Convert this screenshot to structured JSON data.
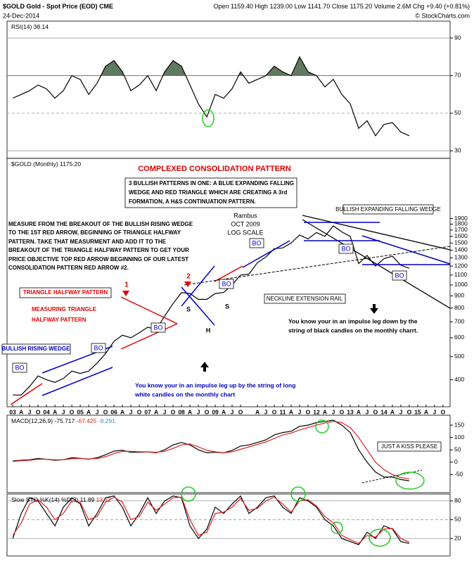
{
  "header": {
    "symbol": "$GOLD",
    "name": "Gold - Spot Price (EOD)",
    "exchange": "CME",
    "date": "24-Dec-2014",
    "open_label": "Open",
    "open": "1159.40",
    "high_label": "High",
    "high": "1239.00",
    "low_label": "Low",
    "low": "1141.70",
    "close_label": "Close",
    "close": "1175.20",
    "volume_label": "Volume",
    "volume": "2.6M",
    "chg_label": "Chg",
    "chg": "+9.40 (+0.81%)",
    "source": "© StockCharts.com"
  },
  "chart_data": [
    {
      "type": "line",
      "label": "RSI(14)",
      "last_values": [
        38.14
      ],
      "x": [
        2003,
        2003.25,
        2003.5,
        2003.75,
        2004,
        2004.25,
        2004.5,
        2004.75,
        2005,
        2005.25,
        2005.5,
        2005.75,
        2006,
        2006.25,
        2006.5,
        2006.75,
        2007,
        2007.25,
        2007.5,
        2007.75,
        2008,
        2008.25,
        2008.5,
        2008.75,
        2009,
        2009.25,
        2009.5,
        2009.75,
        2010,
        2010.25,
        2010.5,
        2010.75,
        2011,
        2011.25,
        2011.5,
        2011.75,
        2012,
        2012.25,
        2012.5,
        2012.75,
        2013,
        2013.25,
        2013.5,
        2013.75,
        2014,
        2014.25,
        2014.5,
        2014.75
      ],
      "series": [
        {
          "color": "#000000",
          "fill": "#5f7a5f",
          "values": [
            58,
            60,
            62,
            65,
            63,
            58,
            62,
            70,
            68,
            60,
            66,
            75,
            78,
            72,
            62,
            65,
            70,
            62,
            72,
            78,
            75,
            65,
            55,
            48,
            60,
            58,
            63,
            72,
            66,
            68,
            70,
            75,
            72,
            70,
            80,
            72,
            70,
            64,
            68,
            60,
            55,
            42,
            46,
            38,
            44,
            45,
            40,
            38
          ]
        }
      ],
      "xlim": [
        2002.83,
        2015.96
      ],
      "ylim": [
        26,
        99
      ],
      "yticks": [
        30,
        50,
        70,
        90
      ],
      "grid": true,
      "shade_above": 70
    },
    {
      "type": "line",
      "label": "$GOLD (Monthly)",
      "last_values": [
        "1175.20"
      ],
      "log": true,
      "x": [
        2003,
        2003.25,
        2003.5,
        2003.75,
        2004,
        2004.25,
        2004.5,
        2004.75,
        2005,
        2005.25,
        2005.5,
        2005.75,
        2006,
        2006.25,
        2006.5,
        2006.75,
        2007,
        2007.25,
        2007.5,
        2007.75,
        2008,
        2008.25,
        2008.5,
        2008.75,
        2009,
        2009.25,
        2009.5,
        2009.75,
        2010,
        2010.25,
        2010.5,
        2010.75,
        2011,
        2011.25,
        2011.5,
        2011.75,
        2012,
        2012.25,
        2012.5,
        2012.75,
        2013,
        2013.25,
        2013.5,
        2013.75,
        2014,
        2014.25,
        2014.5,
        2014.75
      ],
      "series": [
        {
          "color": "#000000",
          "values": [
            345,
            345,
            375,
            415,
            400,
            390,
            405,
            435,
            425,
            435,
            470,
            515,
            580,
            615,
            600,
            630,
            665,
            650,
            740,
            835,
            930,
            920,
            870,
            870,
            920,
            930,
            1000,
            1100,
            1110,
            1240,
            1310,
            1420,
            1430,
            1500,
            1620,
            1560,
            1660,
            1600,
            1770,
            1670,
            1600,
            1230,
            1330,
            1200,
            1290,
            1320,
            1210,
            1175
          ]
        }
      ],
      "xlim": [
        2002.83,
        2015.96
      ],
      "ylim": [
        308,
        3400
      ],
      "yticks": [
        400,
        500,
        600,
        700,
        800,
        900,
        1000,
        1100,
        1200,
        1300,
        1400,
        1500,
        1600,
        1700,
        1800,
        1900
      ],
      "grid": false,
      "xticks": [
        {
          "value": 2003,
          "label": "03"
        },
        {
          "value": 2003.25,
          "label": "A"
        },
        {
          "value": 2003.5,
          "label": "J"
        },
        {
          "value": 2003.75,
          "label": "O"
        },
        {
          "value": 2004,
          "label": "04"
        },
        {
          "value": 2004.25,
          "label": "A"
        },
        {
          "value": 2004.5,
          "label": "J"
        },
        {
          "value": 2004.75,
          "label": "O"
        },
        {
          "value": 2005,
          "label": "05"
        },
        {
          "value": 2005.25,
          "label": "A"
        },
        {
          "value": 2005.5,
          "label": "J"
        },
        {
          "value": 2005.75,
          "label": "O"
        },
        {
          "value": 2006,
          "label": "06"
        },
        {
          "value": 2006.25,
          "label": "A"
        },
        {
          "value": 2006.5,
          "label": "J"
        },
        {
          "value": 2006.75,
          "label": "O"
        },
        {
          "value": 2007,
          "label": "07"
        },
        {
          "value": 2007.25,
          "label": "A"
        },
        {
          "value": 2007.5,
          "label": "J"
        },
        {
          "value": 2007.75,
          "label": "O"
        },
        {
          "value": 2008,
          "label": "08"
        },
        {
          "value": 2008.25,
          "label": "A"
        },
        {
          "value": 2008.5,
          "label": "J"
        },
        {
          "value": 2008.75,
          "label": "O"
        },
        {
          "value": 2009,
          "label": "09"
        },
        {
          "value": 2009.25,
          "label": "A"
        },
        {
          "value": 2009.5,
          "label": "J"
        },
        {
          "value": 2009.75,
          "label": "O"
        },
        {
          "value": 2010.25,
          "label": "A"
        },
        {
          "value": 2010.5,
          "label": "J"
        },
        {
          "value": 2010.75,
          "label": "O"
        },
        {
          "value": 2011,
          "label": "11"
        },
        {
          "value": 2011.25,
          "label": "A"
        },
        {
          "value": 2011.5,
          "label": "J"
        },
        {
          "value": 2011.75,
          "label": "O"
        },
        {
          "value": 2012,
          "label": "12"
        },
        {
          "value": 2012.25,
          "label": "A"
        },
        {
          "value": 2012.5,
          "label": "J"
        },
        {
          "value": 2012.75,
          "label": "O"
        },
        {
          "value": 2013,
          "label": "13"
        },
        {
          "value": 2013.25,
          "label": "A"
        },
        {
          "value": 2013.5,
          "label": "J"
        },
        {
          "value": 2013.75,
          "label": "O"
        },
        {
          "value": 2014,
          "label": "14"
        },
        {
          "value": 2014.25,
          "label": "A"
        },
        {
          "value": 2014.5,
          "label": "J"
        },
        {
          "value": 2014.75,
          "label": "O"
        },
        {
          "value": 2015,
          "label": "15"
        },
        {
          "value": 2015.25,
          "label": "A"
        },
        {
          "value": 2015.5,
          "label": "J"
        },
        {
          "value": 2015.75,
          "label": "O"
        }
      ]
    },
    {
      "type": "line",
      "label": "MACD(12,26,9)",
      "last_values": [
        -75.717,
        -67.425,
        -8.291
      ],
      "x": [
        2003,
        2003.25,
        2003.5,
        2003.75,
        2004,
        2004.25,
        2004.5,
        2004.75,
        2005,
        2005.25,
        2005.5,
        2005.75,
        2006,
        2006.25,
        2006.5,
        2006.75,
        2007,
        2007.25,
        2007.5,
        2007.75,
        2008,
        2008.25,
        2008.5,
        2008.75,
        2009,
        2009.25,
        2009.5,
        2009.75,
        2010,
        2010.25,
        2010.5,
        2010.75,
        2011,
        2011.25,
        2011.5,
        2011.75,
        2012,
        2012.25,
        2012.5,
        2012.75,
        2013,
        2013.25,
        2013.5,
        2013.75,
        2014,
        2014.25,
        2014.5,
        2014.75
      ],
      "series": [
        {
          "color": "#000000",
          "values": [
            5,
            8,
            10,
            15,
            12,
            8,
            10,
            18,
            16,
            12,
            18,
            30,
            45,
            48,
            40,
            40,
            42,
            38,
            50,
            70,
            80,
            70,
            50,
            38,
            40,
            38,
            48,
            65,
            70,
            80,
            90,
            110,
            120,
            125,
            145,
            150,
            160,
            165,
            170,
            150,
            120,
            50,
            0,
            -40,
            -60,
            -60,
            -70,
            -75
          ]
        },
        {
          "color": "#e02020",
          "values": [
            3,
            6,
            8,
            12,
            12,
            10,
            10,
            14,
            15,
            13,
            15,
            22,
            35,
            44,
            44,
            42,
            42,
            40,
            44,
            56,
            70,
            74,
            62,
            48,
            42,
            38,
            42,
            52,
            62,
            72,
            82,
            96,
            110,
            118,
            130,
            140,
            150,
            158,
            165,
            160,
            140,
            100,
            50,
            0,
            -30,
            -50,
            -62,
            -67
          ]
        }
      ],
      "xlim": [
        2002.83,
        2015.96
      ],
      "ylim": [
        -123,
        190
      ],
      "yticks": [
        150,
        100,
        50,
        0,
        -50
      ],
      "grid": false
    },
    {
      "type": "line",
      "label": "Slow STO %K(14) %D(3)",
      "last_values": [
        11.89,
        13.72
      ],
      "x": [
        2003,
        2003.25,
        2003.5,
        2003.75,
        2004,
        2004.25,
        2004.5,
        2004.75,
        2005,
        2005.25,
        2005.5,
        2005.75,
        2006,
        2006.25,
        2006.5,
        2006.75,
        2007,
        2007.25,
        2007.5,
        2007.75,
        2008,
        2008.25,
        2008.5,
        2008.75,
        2009,
        2009.25,
        2009.5,
        2009.75,
        2010,
        2010.25,
        2010.5,
        2010.75,
        2011,
        2011.25,
        2011.5,
        2011.75,
        2012,
        2012.25,
        2012.5,
        2012.75,
        2013,
        2013.25,
        2013.5,
        2013.75,
        2014,
        2014.25,
        2014.5,
        2014.75
      ],
      "series": [
        {
          "color": "#000000",
          "values": [
            20,
            60,
            85,
            80,
            60,
            40,
            70,
            85,
            75,
            40,
            60,
            85,
            88,
            70,
            40,
            60,
            85,
            60,
            80,
            88,
            85,
            40,
            20,
            35,
            70,
            60,
            75,
            88,
            60,
            70,
            85,
            88,
            70,
            60,
            85,
            80,
            70,
            50,
            40,
            20,
            15,
            10,
            30,
            20,
            40,
            35,
            15,
            12
          ]
        },
        {
          "color": "#e02020",
          "values": [
            25,
            45,
            75,
            82,
            70,
            50,
            60,
            80,
            78,
            50,
            55,
            78,
            86,
            78,
            50,
            55,
            78,
            65,
            75,
            85,
            86,
            50,
            25,
            30,
            60,
            62,
            70,
            84,
            65,
            68,
            80,
            86,
            75,
            62,
            80,
            82,
            72,
            55,
            45,
            25,
            18,
            12,
            25,
            22,
            35,
            36,
            20,
            14
          ]
        }
      ],
      "xlim": [
        2002.83,
        2015.96
      ],
      "ylim": [
        -8,
        91
      ],
      "yticks": [
        80,
        50,
        20
      ],
      "grid": true
    }
  ],
  "annotations": {
    "title": "COMPLEXED CONSOLIDATION PATTERN",
    "box_three": [
      "3 BULLISH PATTERNS IN ONE:  A BLUE EXPANDING FALLING",
      "WEDGE AND RED TRIANGLE WHICH ARE CREATING A 3rd",
      "FORMATION, A H&S CONTINUATION PATTERN."
    ],
    "measure": [
      "MEASURE FROM THE BREAKOUT OF THE BULLISH RISING WEDGE",
      "TO THE 1ST RED ARROW, BEGINNING OF TRIANGLE HALFWAY",
      "PATTERN. TAKE THAT MEASURMENT AND ADD IT TO THE",
      "BREAKOUT OF THE TRIANGLE HALFWAY PATTERN TO GET YOUR",
      "PRICE OBJECTIVE TOP RED ARROW BEGINNING OF OUR LATEST",
      "CONSOLIDATION PATTERN RED ARROW #2."
    ],
    "rambus": [
      "Rambus",
      "OCT 2009",
      "LOG SCALE"
    ],
    "falling_wedge": "BULLISH EXPANDING FALLING WEDGE",
    "neckline": "NECKLINE EXTENSION RAIL",
    "leg_down": [
      "You know your in an impulse leg down by the",
      "string of black candles on the monthly charrt."
    ],
    "leg_up": [
      "You know your in an impulse leg up by the string of long",
      "white candles on the monthly chart"
    ],
    "triangle": "TRIANGLE HALFWAY PATTERN",
    "measuring": [
      "MEASURING TRIANGLE",
      "HALFWAY PATTERN"
    ],
    "rising_wedge": "BULLISH RISING WEDGE",
    "bo": "BO",
    "arrow1": "1",
    "arrow2": "2",
    "s": "S",
    "h": "H",
    "kiss": "JUST A KISS PLEASE"
  }
}
